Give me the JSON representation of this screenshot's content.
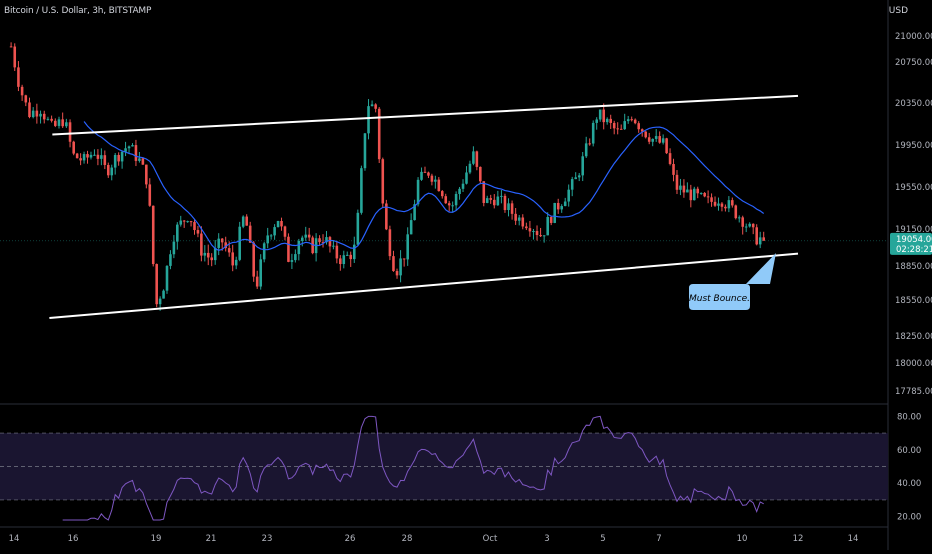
{
  "header": {
    "symbol_title": "Bitcoin / U.S. Dollar, 3h, BITSTAMP",
    "currency": "USD"
  },
  "colors": {
    "background": "#000000",
    "up_candle": "#26a69a",
    "down_candle": "#ef5350",
    "moving_average": "#2962ff",
    "trendline": "#ffffff",
    "rsi_line": "#7e57c2",
    "rsi_band": "#1a1530",
    "current_price_bg": "#26a69a",
    "annotation_bg": "#90caf9",
    "axis_text": "#b2b5be"
  },
  "price_axis": {
    "ticks": [
      21000,
      20750,
      20350,
      19950,
      19550,
      19150,
      18850,
      18550,
      18250,
      18000,
      17785
    ],
    "tick_labels": [
      "21000.00",
      "20750.00",
      "20350.00",
      "19950.00",
      "19550.00",
      "19150.00",
      "18850.00",
      "18550.00",
      "18250.00",
      "18000.00",
      "17785.00"
    ],
    "current_price": "19054.00",
    "countdown": "02:28:21"
  },
  "rsi_axis": {
    "tick_labels": [
      "80.00",
      "60.00",
      "40.00",
      "20.00"
    ],
    "ticks": [
      80,
      60,
      40,
      20
    ],
    "band_upper": 70,
    "band_mid": 50,
    "band_lower": 30
  },
  "time_axis": {
    "labels": [
      "14",
      "16",
      "19",
      "21",
      "23",
      "26",
      "28",
      "Oct",
      "3",
      "5",
      "7",
      "10",
      "12",
      "14"
    ],
    "positions_days": [
      14,
      16,
      19,
      21,
      23,
      26,
      28,
      31,
      33,
      35,
      37,
      40,
      42,
      44
    ]
  },
  "annotation": {
    "text": "Must Bounce."
  },
  "chart_data": {
    "type": "candlestick",
    "title": "Bitcoin / U.S. Dollar, 3h, BITSTAMP",
    "ylim": [
      17700,
      21300
    ],
    "x_unit": "September/October day",
    "candles_close_path": [
      [
        13.9,
        20900
      ],
      [
        14.2,
        20500
      ],
      [
        14.5,
        20250
      ],
      [
        14.9,
        20300
      ],
      [
        15.3,
        20100
      ],
      [
        15.7,
        20200
      ],
      [
        16.0,
        19850
      ],
      [
        16.4,
        19800
      ],
      [
        16.8,
        19900
      ],
      [
        17.2,
        19700
      ],
      [
        17.6,
        19850
      ],
      [
        18.0,
        19950
      ],
      [
        18.4,
        19800
      ],
      [
        18.7,
        19600
      ],
      [
        19.0,
        18500
      ],
      [
        19.3,
        18700
      ],
      [
        19.6,
        19100
      ],
      [
        19.9,
        19200
      ],
      [
        20.2,
        19300
      ],
      [
        20.6,
        19000
      ],
      [
        21.0,
        18900
      ],
      [
        21.4,
        19050
      ],
      [
        21.8,
        18850
      ],
      [
        22.2,
        19300
      ],
      [
        22.6,
        18650
      ],
      [
        23.0,
        19100
      ],
      [
        23.4,
        19250
      ],
      [
        23.8,
        18900
      ],
      [
        24.2,
        19100
      ],
      [
        24.6,
        19000
      ],
      [
        25.0,
        19100
      ],
      [
        25.4,
        18950
      ],
      [
        25.8,
        18900
      ],
      [
        26.2,
        19000
      ],
      [
        26.6,
        20350
      ],
      [
        26.9,
        20300
      ],
      [
        27.2,
        19200
      ],
      [
        27.6,
        18800
      ],
      [
        28.0,
        19000
      ],
      [
        28.4,
        19600
      ],
      [
        28.8,
        19700
      ],
      [
        29.2,
        19550
      ],
      [
        29.6,
        19350
      ],
      [
        30.0,
        19600
      ],
      [
        30.4,
        19850
      ],
      [
        30.8,
        19400
      ],
      [
        31.2,
        19450
      ],
      [
        31.6,
        19350
      ],
      [
        32.0,
        19250
      ],
      [
        32.4,
        19200
      ],
      [
        32.8,
        19100
      ],
      [
        33.2,
        19300
      ],
      [
        33.6,
        19450
      ],
      [
        34.0,
        19600
      ],
      [
        34.4,
        19900
      ],
      [
        34.8,
        20250
      ],
      [
        35.2,
        20150
      ],
      [
        35.6,
        20050
      ],
      [
        36.0,
        20250
      ],
      [
        36.4,
        20100
      ],
      [
        36.8,
        20000
      ],
      [
        37.2,
        19950
      ],
      [
        37.6,
        19550
      ],
      [
        38.0,
        19500
      ],
      [
        38.4,
        19450
      ],
      [
        38.8,
        19400
      ],
      [
        39.2,
        19450
      ],
      [
        39.6,
        19350
      ],
      [
        40.0,
        19250
      ],
      [
        40.4,
        19100
      ],
      [
        40.8,
        19054
      ]
    ],
    "series": [
      {
        "name": "Price",
        "kind": "candles"
      },
      {
        "kind": "moving_average"
      },
      {
        "name": "RSI",
        "kind": "oscillator"
      }
    ],
    "trendlines": [
      {
        "from": [
          15.3,
          20050
        ],
        "to": [
          42.0,
          20420
        ]
      },
      {
        "from": [
          15.2,
          18400
        ],
        "to": [
          42.0,
          18950
        ]
      }
    ],
    "annotations": [
      "Must Bounce."
    ]
  }
}
